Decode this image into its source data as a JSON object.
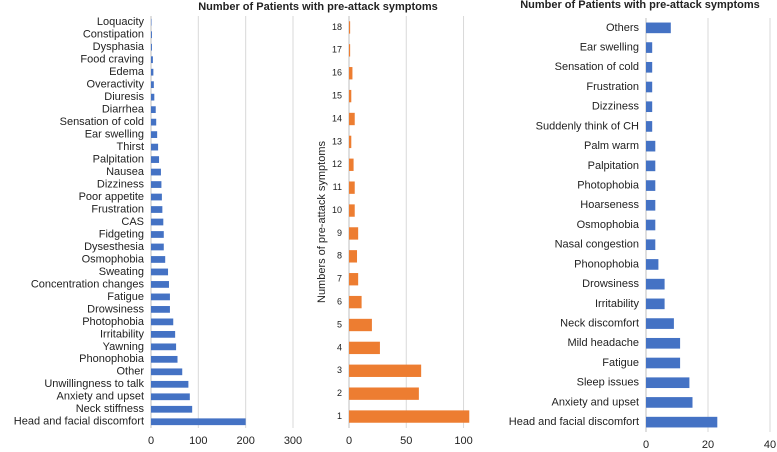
{
  "chart_data": [
    {
      "type": "barh",
      "title": "Number of Patients with pre-attack symptoms",
      "color": "#4472c4",
      "grid": true,
      "categories": [
        "Head and facial discomfort",
        "Neck stiffness",
        "Anxiety and upset",
        "Unwillingness to talk",
        "Other",
        "Phonophobia",
        "Yawning",
        "Irritability",
        "Photophobia",
        "Drowsiness",
        "Fatigue",
        "Concentration changes",
        "Sweating",
        "Osmophobia",
        "Dysesthesia",
        "Fidgeting",
        "CAS",
        "Frustration",
        "Poor appetite",
        "Dizziness",
        "Nausea",
        "Palpitation",
        "Thirst",
        "Ear swelling",
        "Sensation of cold",
        "Diarrhea",
        "Diuresis",
        "Overactivity",
        "Edema",
        "Food craving",
        "Dysphasia",
        "Constipation",
        "Loquacity"
      ],
      "values": [
        200,
        87,
        82,
        79,
        66,
        56,
        53,
        51,
        47,
        40,
        40,
        38,
        36,
        30,
        27,
        27,
        26,
        24,
        23,
        22,
        21,
        17,
        15,
        13,
        11,
        10,
        7,
        6,
        5,
        4,
        2,
        2,
        1
      ],
      "xlim": [
        0,
        300
      ],
      "xticks": [
        0,
        100,
        200,
        300
      ]
    },
    {
      "type": "barh",
      "ylabel": "Numbers of pre-attack symptoms",
      "color": "#ed7d31",
      "grid": true,
      "categories": [
        "1",
        "2",
        "3",
        "4",
        "5",
        "6",
        "7",
        "8",
        "9",
        "10",
        "11",
        "12",
        "13",
        "14",
        "15",
        "16",
        "17",
        "18"
      ],
      "values": [
        105,
        61,
        63,
        27,
        20,
        11,
        8,
        7,
        8,
        5,
        5,
        4,
        2,
        5,
        2,
        3,
        1,
        1
      ],
      "xlim": [
        0,
        110
      ],
      "xticks": [
        0,
        50,
        100
      ]
    },
    {
      "type": "barh",
      "title": "Number of Patients with pre-attack symptoms",
      "color": "#4472c4",
      "grid": true,
      "categories": [
        "Head and facial discomfort",
        "Anxiety and upset",
        "Sleep issues",
        "Fatigue",
        "Mild headache",
        "Neck discomfort",
        "Irritability",
        "Drowsiness",
        "Phonophobia",
        "Nasal congestion",
        "Osmophobia",
        "Hoarseness",
        "Photophobia",
        "Palpitation",
        "Palm warm",
        "Suddenly think of CH",
        "Dizziness",
        "Frustration",
        "Sensation of cold",
        "Ear swelling",
        "Others"
      ],
      "values": [
        23,
        15,
        14,
        11,
        11,
        9,
        6,
        6,
        4,
        3,
        3,
        3,
        3,
        3,
        3,
        2,
        2,
        2,
        2,
        2,
        8
      ],
      "xlim": [
        0,
        40
      ],
      "xticks": [
        0,
        20,
        40
      ]
    }
  ]
}
